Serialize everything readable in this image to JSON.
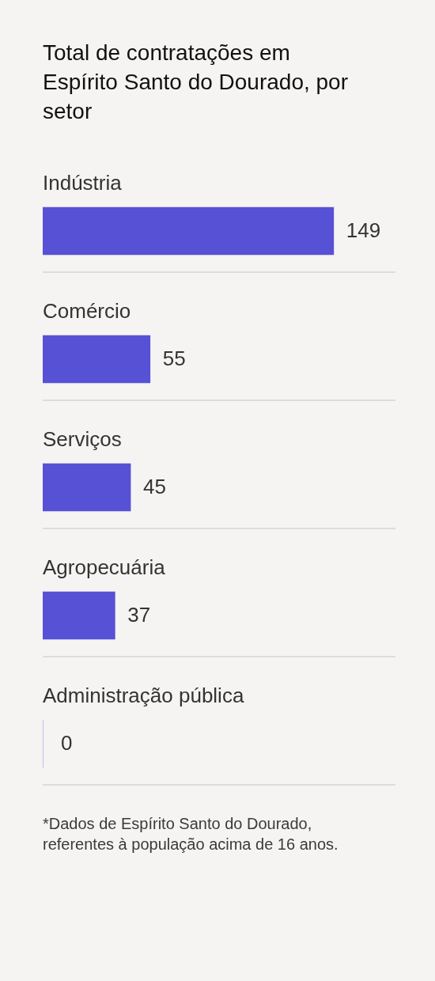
{
  "chart_data": {
    "type": "bar",
    "orientation": "horizontal",
    "title": "Total de contratações em Espírito Santo do Dourado, por setor",
    "categories": [
      "Indústria",
      "Comércio",
      "Serviços",
      "Agropecuária",
      "Administração pública"
    ],
    "values": [
      149,
      55,
      45,
      37,
      0
    ],
    "color": "#5751d5",
    "data_labels": true,
    "grid": "y",
    "annotations": [
      "*Dados de Espírito Santo do Dourado, referentes à população acima de 16 anos."
    ]
  }
}
